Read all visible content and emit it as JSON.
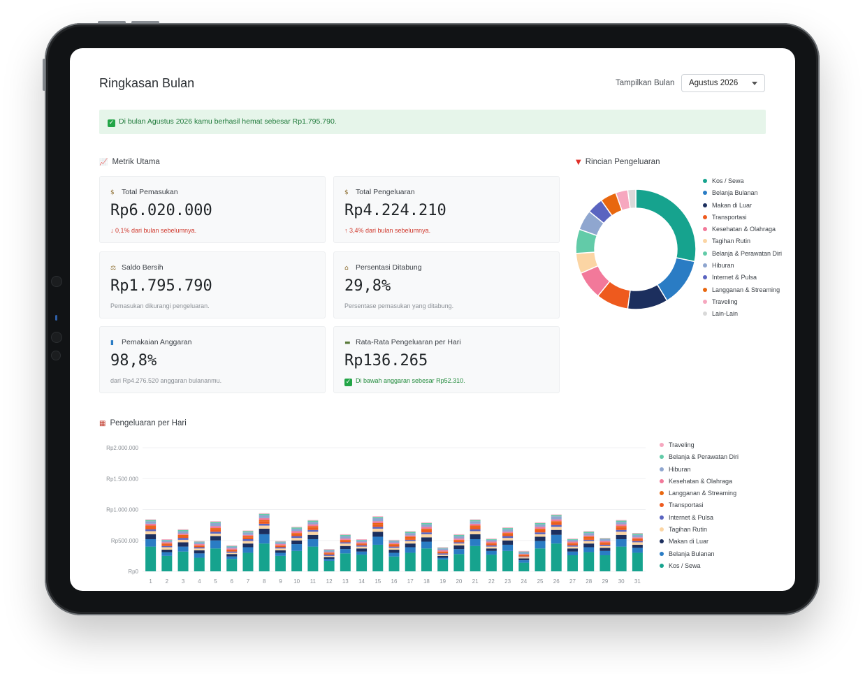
{
  "header": {
    "title": "Ringkasan Bulan",
    "month_label": "Tampilkan Bulan",
    "month_value": "Agustus 2026"
  },
  "alert": {
    "text": "Di bulan Agustus 2026 kamu berhasil hemat sebesar Rp1.795.790."
  },
  "metrics": {
    "title": "Metrik Utama",
    "cards": [
      {
        "label": "Total Pemasukan",
        "value": "Rp6.020.000",
        "note": "↓ 0,1% dari bulan sebelumnya.",
        "icon": "money-bag-icon"
      },
      {
        "label": "Total Pengeluaran",
        "value": "Rp4.224.210",
        "note": "↑ 3,4% dari bulan sebelumnya.",
        "icon": "money-wings-icon"
      },
      {
        "label": "Saldo Bersih",
        "value": "Rp1.795.790",
        "note": "Pemasukan dikurangi pengeluaran.",
        "icon": "scale-icon"
      },
      {
        "label": "Persentasi Ditabung",
        "value": "29,8%",
        "note": "Persentase pemasukan yang ditabung.",
        "icon": "bank-icon"
      },
      {
        "label": "Pemakaian Anggaran",
        "value": "98,8%",
        "note": "dari Rp4.276.520 anggaran bulananmu.",
        "icon": "bar-chart-icon"
      },
      {
        "label": "Rata-Rata Pengeluaran per Hari",
        "value": "Rp136.265",
        "note": "Di bawah anggaran sebesar Rp52.310.",
        "icon": "credit-card-icon"
      }
    ]
  },
  "colors": {
    "Kos / Sewa": "#16a38e",
    "Belanja Bulanan": "#2a7cc4",
    "Makan di Luar": "#1c2f5e",
    "Transportasi": "#ee5a1e",
    "Kesehatan & Olahraga": "#f2799a",
    "Tagihan Rutin": "#fbd5a4",
    "Belanja & Perawatan Diri": "#62cba8",
    "Hiburan": "#8fa6cf",
    "Internet & Pulsa": "#5a64c0",
    "Langganan & Streaming": "#e8670f",
    "Traveling": "#f6a7bf",
    "Lain-Lain": "#d9d9d9"
  },
  "breakdown": {
    "title": "Rincian Pengeluaran",
    "legend": [
      "Kos / Sewa",
      "Belanja Bulanan",
      "Makan di Luar",
      "Transportasi",
      "Kesehatan & Olahraga",
      "Tagihan Rutin",
      "Belanja & Perawatan Diri",
      "Hiburan",
      "Internet & Pulsa",
      "Langganan & Streaming",
      "Traveling",
      "Lain-Lain"
    ]
  },
  "daily": {
    "title": "Pengeluaran per Hari",
    "legend": [
      "Traveling",
      "Belanja & Perawatan Diri",
      "Hiburan",
      "Kesehatan & Olahraga",
      "Langganan & Streaming",
      "Transportasi",
      "Internet & Pulsa",
      "Tagihan Rutin",
      "Makan di Luar",
      "Belanja Bulanan",
      "Kos / Sewa"
    ]
  },
  "chart_data": [
    {
      "type": "pie",
      "title": "Rincian Pengeluaran",
      "donut": true,
      "categories": [
        "Kos / Sewa",
        "Belanja Bulanan",
        "Makan di Luar",
        "Transportasi",
        "Kesehatan & Olahraga",
        "Tagihan Rutin",
        "Belanja & Perawatan Diri",
        "Hiburan",
        "Internet & Pulsa",
        "Langganan & Streaming",
        "Traveling",
        "Lain-Lain"
      ],
      "values": [
        26,
        12,
        10,
        8,
        7,
        5,
        6,
        5,
        4,
        4,
        3,
        2
      ],
      "legend_position": "right"
    },
    {
      "type": "bar",
      "stacked": true,
      "title": "Pengeluaran per Hari",
      "x": [
        1,
        2,
        3,
        4,
        5,
        6,
        7,
        8,
        9,
        10,
        11,
        12,
        13,
        14,
        15,
        16,
        17,
        18,
        19,
        20,
        21,
        22,
        23,
        24,
        25,
        26,
        27,
        28,
        29,
        30,
        31
      ],
      "ylim": [
        0,
        2000000
      ],
      "yticks": [
        "Rp0",
        "Rp500.000",
        "Rp1.000.000",
        "Rp1.500.000",
        "Rp2.000.000"
      ],
      "legend_position": "right",
      "series": [
        {
          "name": "Kos / Sewa",
          "values": [
            400000,
            250000,
            320000,
            220000,
            370000,
            200000,
            300000,
            450000,
            250000,
            330000,
            400000,
            170000,
            290000,
            270000,
            430000,
            240000,
            300000,
            370000,
            190000,
            280000,
            410000,
            270000,
            330000,
            140000,
            370000,
            450000,
            260000,
            310000,
            260000,
            400000,
            300000
          ]
        },
        {
          "name": "Belanja Bulanan",
          "values": [
            120000,
            60000,
            80000,
            70000,
            130000,
            40000,
            90000,
            150000,
            50000,
            110000,
            120000,
            30000,
            70000,
            50000,
            130000,
            60000,
            90000,
            110000,
            30000,
            80000,
            110000,
            60000,
            100000,
            40000,
            120000,
            140000,
            60000,
            80000,
            70000,
            120000,
            80000
          ]
        },
        {
          "name": "Makan di Luar",
          "values": [
            80000,
            40000,
            70000,
            50000,
            70000,
            40000,
            60000,
            90000,
            40000,
            60000,
            70000,
            30000,
            50000,
            50000,
            80000,
            50000,
            60000,
            70000,
            30000,
            60000,
            80000,
            40000,
            70000,
            30000,
            70000,
            80000,
            50000,
            60000,
            50000,
            70000,
            50000
          ]
        },
        {
          "name": "Tagihan Rutin",
          "values": [
            50000,
            40000,
            40000,
            30000,
            40000,
            20000,
            40000,
            50000,
            30000,
            40000,
            50000,
            20000,
            40000,
            30000,
            50000,
            30000,
            40000,
            50000,
            20000,
            30000,
            50000,
            30000,
            40000,
            20000,
            40000,
            50000,
            30000,
            40000,
            30000,
            50000,
            40000
          ]
        },
        {
          "name": "Internet & Pulsa",
          "values": [
            30000,
            20000,
            30000,
            20000,
            30000,
            20000,
            30000,
            30000,
            20000,
            30000,
            30000,
            20000,
            20000,
            20000,
            30000,
            20000,
            20000,
            30000,
            20000,
            20000,
            30000,
            20000,
            30000,
            10000,
            30000,
            30000,
            20000,
            20000,
            20000,
            30000,
            20000
          ]
        },
        {
          "name": "Transportasi",
          "values": [
            40000,
            30000,
            30000,
            20000,
            40000,
            20000,
            30000,
            40000,
            20000,
            30000,
            40000,
            20000,
            30000,
            20000,
            40000,
            30000,
            30000,
            40000,
            20000,
            30000,
            40000,
            30000,
            30000,
            20000,
            40000,
            40000,
            30000,
            30000,
            30000,
            40000,
            30000
          ]
        },
        {
          "name": "Langganan & Streaming",
          "values": [
            20000,
            10000,
            20000,
            10000,
            20000,
            10000,
            20000,
            20000,
            10000,
            20000,
            20000,
            10000,
            10000,
            10000,
            20000,
            10000,
            20000,
            20000,
            10000,
            10000,
            20000,
            10000,
            20000,
            10000,
            20000,
            20000,
            10000,
            20000,
            10000,
            20000,
            10000
          ]
        },
        {
          "name": "Kesehatan & Olahraga",
          "values": [
            30000,
            20000,
            20000,
            20000,
            30000,
            20000,
            20000,
            30000,
            20000,
            30000,
            30000,
            10000,
            20000,
            20000,
            30000,
            20000,
            20000,
            30000,
            20000,
            20000,
            30000,
            20000,
            20000,
            10000,
            30000,
            30000,
            20000,
            20000,
            20000,
            30000,
            20000
          ]
        },
        {
          "name": "Hiburan",
          "values": [
            40000,
            30000,
            40000,
            30000,
            50000,
            30000,
            40000,
            50000,
            30000,
            40000,
            40000,
            30000,
            40000,
            30000,
            50000,
            30000,
            40000,
            40000,
            30000,
            40000,
            40000,
            30000,
            40000,
            30000,
            40000,
            50000,
            30000,
            40000,
            30000,
            40000,
            40000
          ]
        },
        {
          "name": "Belanja & Perawatan Diri",
          "values": [
            20000,
            10000,
            20000,
            10000,
            20000,
            10000,
            20000,
            20000,
            10000,
            20000,
            20000,
            10000,
            20000,
            10000,
            20000,
            10000,
            20000,
            20000,
            10000,
            20000,
            20000,
            10000,
            20000,
            10000,
            20000,
            20000,
            10000,
            20000,
            10000,
            20000,
            20000
          ]
        },
        {
          "name": "Traveling",
          "values": [
            10000,
            10000,
            10000,
            10000,
            10000,
            10000,
            10000,
            10000,
            10000,
            10000,
            10000,
            10000,
            10000,
            10000,
            10000,
            10000,
            10000,
            10000,
            10000,
            10000,
            10000,
            10000,
            10000,
            10000,
            10000,
            10000,
            10000,
            10000,
            10000,
            10000,
            10000
          ]
        }
      ]
    }
  ]
}
